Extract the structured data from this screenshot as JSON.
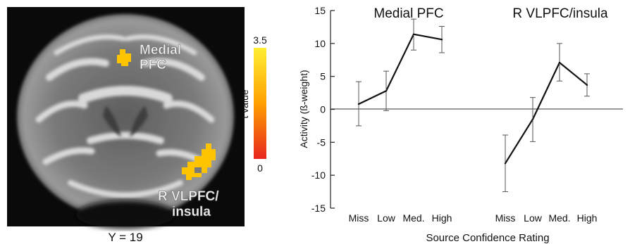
{
  "brain_panel": {
    "slice_label": "Y = 19",
    "region_labels": {
      "medial_pfc": [
        "Medial",
        "PFC"
      ],
      "vlpfc": [
        "R VLPFC/",
        "insula"
      ]
    },
    "colorbar": {
      "max_label": "3.5",
      "min_label": "0",
      "title": "t value",
      "colors": {
        "top": "#ffee33",
        "mid": "#ffa000",
        "bottom": "#e8261e"
      }
    },
    "activation_color": "#ffc400"
  },
  "chart_data": {
    "type": "line",
    "ylabel": "Activity (ß-weight)",
    "xlabel": "Source Confidence Rating",
    "ylim": [
      -15,
      15
    ],
    "yticks": [
      "15",
      "10",
      "5",
      "0",
      "-5",
      "-10",
      "-15"
    ],
    "categories": [
      "Miss",
      "Low",
      "Med.",
      "High"
    ],
    "series": [
      {
        "name": "Medial PFC",
        "values": [
          0.8,
          2.8,
          11.4,
          10.6
        ],
        "err_upper": [
          4.2,
          5.8,
          13.7,
          12.6
        ],
        "err_lower": [
          -2.5,
          -0.2,
          9.0,
          8.6
        ]
      },
      {
        "name": "R VLPFC/insula",
        "values": [
          -8.2,
          -1.5,
          7.1,
          3.7
        ],
        "err_upper": [
          -3.9,
          1.8,
          10.0,
          5.4
        ],
        "err_lower": [
          -12.5,
          -4.9,
          4.3,
          2.0
        ]
      }
    ]
  }
}
